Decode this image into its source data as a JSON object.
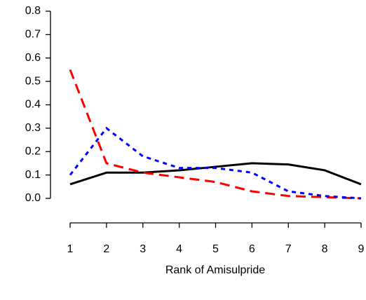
{
  "chart_data": {
    "type": "line",
    "xlabel": "Rank of Amisulpride",
    "x": [
      1,
      2,
      3,
      4,
      5,
      6,
      7,
      8,
      9
    ],
    "series": [
      {
        "color": "#000000",
        "dash": "solid",
        "values": [
          0.06,
          0.11,
          0.11,
          0.12,
          0.135,
          0.15,
          0.145,
          0.12,
          0.06
        ]
      },
      {
        "color": "#ff0000",
        "dash": "dashed",
        "values": [
          0.55,
          0.15,
          0.11,
          0.09,
          0.07,
          0.03,
          0.01,
          0.005,
          0.0
        ]
      },
      {
        "color": "#0000ff",
        "dash": "dotted",
        "values": [
          0.1,
          0.3,
          0.18,
          0.13,
          0.13,
          0.11,
          0.03,
          0.01,
          0.0
        ]
      }
    ],
    "xlim": [
      1,
      9
    ],
    "xticks": [
      1,
      2,
      3,
      4,
      5,
      6,
      7,
      8,
      9
    ],
    "ylim": [
      0,
      0.8
    ],
    "yticks": [
      {
        "value": 0,
        "label": "0.0"
      },
      0.1,
      0.2,
      0.3,
      0.4,
      0.5,
      0.6,
      0.7,
      0.8
    ]
  }
}
